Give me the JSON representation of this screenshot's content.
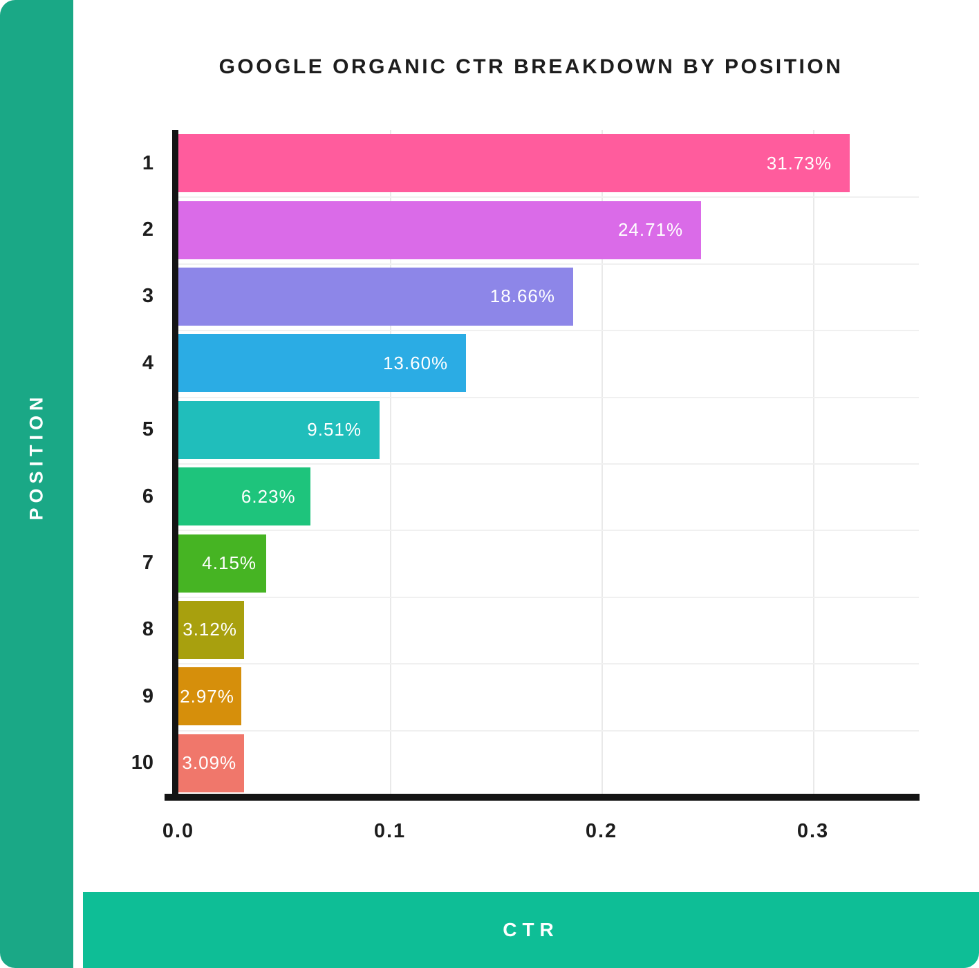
{
  "colors": {
    "left_strip": "#1AA886",
    "bottom_strip": "#0EBE96",
    "axis": "#141414",
    "grid": "#e9e9e9",
    "title_text": "#1d1d1d",
    "value_label_text": "#ffffff"
  },
  "chart_data": {
    "type": "bar",
    "orientation": "horizontal",
    "title": "GOOGLE ORGANIC CTR BREAKDOWN BY POSITION",
    "xlabel": "CTR",
    "ylabel": "POSITION",
    "categories": [
      "1",
      "2",
      "3",
      "4",
      "5",
      "6",
      "7",
      "8",
      "9",
      "10"
    ],
    "values": [
      0.3173,
      0.2471,
      0.1866,
      0.136,
      0.0951,
      0.0623,
      0.0415,
      0.0312,
      0.0297,
      0.0309
    ],
    "value_labels": [
      "31.73%",
      "24.71%",
      "18.66%",
      "13.60%",
      "9.51%",
      "6.23%",
      "4.15%",
      "3.12%",
      "2.97%",
      "3.09%"
    ],
    "bar_colors": [
      "#FF5C9D",
      "#DA6BE8",
      "#8D86E8",
      "#2BACE4",
      "#20BEBB",
      "#1EC47C",
      "#46B423",
      "#A8A00E",
      "#D68F0B",
      "#F0776B"
    ],
    "x_ticks": [
      "0.0",
      "0.1",
      "0.2",
      "0.3"
    ],
    "x_tick_values": [
      0.0,
      0.1,
      0.2,
      0.3
    ],
    "xlim": [
      0,
      0.35
    ],
    "grid": true,
    "legend": false
  }
}
